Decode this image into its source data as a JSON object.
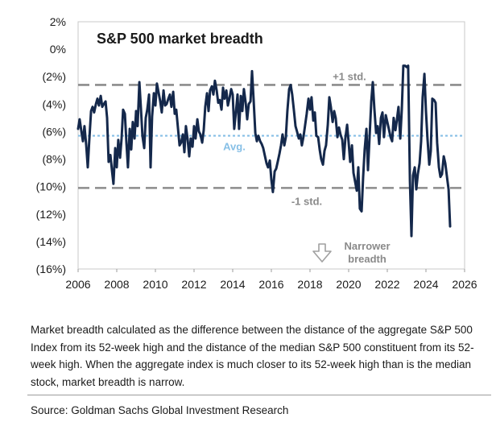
{
  "chart_data": {
    "type": "line",
    "title": "S&P 500 market breadth",
    "xlabel": "",
    "ylabel": "",
    "xlim": [
      2006,
      2026
    ],
    "ylim": [
      -16,
      2
    ],
    "x_ticks": [
      {
        "value": 2006,
        "label": "2006"
      },
      {
        "value": 2008,
        "label": "2008"
      },
      {
        "value": 2010,
        "label": "2010"
      },
      {
        "value": 2012,
        "label": "2012"
      },
      {
        "value": 2014,
        "label": "2014"
      },
      {
        "value": 2016,
        "label": "2016"
      },
      {
        "value": 2018,
        "label": "2018"
      },
      {
        "value": 2020,
        "label": "2020"
      },
      {
        "value": 2022,
        "label": "2022"
      },
      {
        "value": 2024,
        "label": "2024"
      },
      {
        "value": 2026,
        "label": "2026"
      }
    ],
    "y_ticks": [
      {
        "value": 2,
        "label": "2%"
      },
      {
        "value": 0,
        "label": "0%"
      },
      {
        "value": -2,
        "label": "(2%)"
      },
      {
        "value": -4,
        "label": "(4%)"
      },
      {
        "value": -6,
        "label": "(6%)"
      },
      {
        "value": -8,
        "label": "(8%)"
      },
      {
        "value": -10,
        "label": "(10%)"
      },
      {
        "value": -12,
        "label": "(12%)"
      },
      {
        "value": -14,
        "label": "(14%)"
      },
      {
        "value": -16,
        "label": "(16%)"
      }
    ],
    "grid": false,
    "reference_lines": [
      {
        "label": "+1 std.",
        "value": -2.6,
        "color": "#8c8c8c",
        "style": "dashed"
      },
      {
        "label": "Avg.",
        "value": -6.3,
        "color": "#86bfe6",
        "style": "dotted"
      },
      {
        "label": "-1 std.",
        "value": -10.1,
        "color": "#8c8c8c",
        "style": "dashed"
      }
    ],
    "annotation": {
      "text_lines": [
        "Narrower",
        "breadth"
      ],
      "icon": "down-arrow-icon",
      "color": "#a0a0a0"
    },
    "series": [
      {
        "color": "#14284b",
        "points": [
          [
            2006.0,
            -5.8
          ],
          [
            2006.08,
            -5.1
          ],
          [
            2006.17,
            -6.0
          ],
          [
            2006.25,
            -6.7
          ],
          [
            2006.33,
            -5.6
          ],
          [
            2006.42,
            -7.0
          ],
          [
            2006.5,
            -8.6
          ],
          [
            2006.58,
            -6.6
          ],
          [
            2006.67,
            -4.5
          ],
          [
            2006.75,
            -4.2
          ],
          [
            2006.83,
            -4.6
          ],
          [
            2006.92,
            -4.0
          ],
          [
            2007.0,
            -3.6
          ],
          [
            2007.08,
            -4.1
          ],
          [
            2007.17,
            -3.4
          ],
          [
            2007.25,
            -4.2
          ],
          [
            2007.33,
            -4.0
          ],
          [
            2007.42,
            -3.8
          ],
          [
            2007.5,
            -5.0
          ],
          [
            2007.58,
            -8.2
          ],
          [
            2007.67,
            -7.7
          ],
          [
            2007.75,
            -8.8
          ],
          [
            2007.83,
            -9.8
          ],
          [
            2007.92,
            -7.2
          ],
          [
            2008.0,
            -8.6
          ],
          [
            2008.08,
            -6.6
          ],
          [
            2008.17,
            -7.9
          ],
          [
            2008.25,
            -6.5
          ],
          [
            2008.33,
            -4.4
          ],
          [
            2008.42,
            -4.7
          ],
          [
            2008.5,
            -6.8
          ],
          [
            2008.58,
            -8.6
          ],
          [
            2008.67,
            -5.8
          ],
          [
            2008.75,
            -7.3
          ],
          [
            2008.83,
            -5.3
          ],
          [
            2008.92,
            -6.5
          ],
          [
            2009.0,
            -4.5
          ],
          [
            2009.08,
            -5.6
          ],
          [
            2009.17,
            -2.4
          ],
          [
            2009.25,
            -4.3
          ],
          [
            2009.33,
            -6.3
          ],
          [
            2009.42,
            -7.2
          ],
          [
            2009.5,
            -5.0
          ],
          [
            2009.58,
            -4.4
          ],
          [
            2009.67,
            -3.3
          ],
          [
            2009.75,
            -8.6
          ],
          [
            2009.83,
            -4.9
          ],
          [
            2009.92,
            -3.2
          ],
          [
            2010.0,
            -4.1
          ],
          [
            2010.08,
            -2.5
          ],
          [
            2010.17,
            -3.2
          ],
          [
            2010.25,
            -3.8
          ],
          [
            2010.33,
            -4.6
          ],
          [
            2010.42,
            -3.0
          ],
          [
            2010.5,
            -4.1
          ],
          [
            2010.58,
            -4.0
          ],
          [
            2010.67,
            -3.6
          ],
          [
            2010.75,
            -3.3
          ],
          [
            2010.83,
            -4.2
          ],
          [
            2010.92,
            -3.1
          ],
          [
            2011.0,
            -4.7
          ],
          [
            2011.08,
            -4.4
          ],
          [
            2011.17,
            -5.8
          ],
          [
            2011.25,
            -7.0
          ],
          [
            2011.33,
            -6.8
          ],
          [
            2011.42,
            -6.2
          ],
          [
            2011.5,
            -7.5
          ],
          [
            2011.58,
            -5.6
          ],
          [
            2011.67,
            -6.6
          ],
          [
            2011.75,
            -7.8
          ],
          [
            2011.83,
            -6.5
          ],
          [
            2011.92,
            -7.1
          ],
          [
            2012.0,
            -5.6
          ],
          [
            2012.08,
            -6.5
          ],
          [
            2012.17,
            -5.1
          ],
          [
            2012.25,
            -6.0
          ],
          [
            2012.33,
            -6.2
          ],
          [
            2012.42,
            -6.8
          ],
          [
            2012.5,
            -5.9
          ],
          [
            2012.58,
            -4.2
          ],
          [
            2012.67,
            -3.2
          ],
          [
            2012.75,
            -4.5
          ],
          [
            2012.83,
            -3.0
          ],
          [
            2012.92,
            -2.7
          ],
          [
            2013.0,
            -3.3
          ],
          [
            2013.08,
            -2.3
          ],
          [
            2013.17,
            -3.0
          ],
          [
            2013.25,
            -3.9
          ],
          [
            2013.33,
            -3.7
          ],
          [
            2013.42,
            -4.4
          ],
          [
            2013.5,
            -2.8
          ],
          [
            2013.58,
            -3.6
          ],
          [
            2013.67,
            -3.0
          ],
          [
            2013.75,
            -4.1
          ],
          [
            2013.83,
            -3.6
          ],
          [
            2013.92,
            -2.9
          ],
          [
            2014.0,
            -3.3
          ],
          [
            2014.08,
            -5.8
          ],
          [
            2014.17,
            -4.5
          ],
          [
            2014.25,
            -3.3
          ],
          [
            2014.33,
            -5.8
          ],
          [
            2014.42,
            -3.4
          ],
          [
            2014.5,
            -4.5
          ],
          [
            2014.58,
            -2.9
          ],
          [
            2014.67,
            -3.9
          ],
          [
            2014.75,
            -5.1
          ],
          [
            2014.83,
            -4.0
          ],
          [
            2014.92,
            -3.8
          ],
          [
            2015.0,
            -1.6
          ],
          [
            2015.08,
            -3.6
          ],
          [
            2015.17,
            -6.1
          ],
          [
            2015.25,
            -6.7
          ],
          [
            2015.33,
            -6.3
          ],
          [
            2015.42,
            -6.7
          ],
          [
            2015.5,
            -6.9
          ],
          [
            2015.58,
            -7.2
          ],
          [
            2015.67,
            -7.8
          ],
          [
            2015.75,
            -8.3
          ],
          [
            2015.83,
            -8.6
          ],
          [
            2015.92,
            -8.1
          ],
          [
            2016.0,
            -9.5
          ],
          [
            2016.08,
            -10.4
          ],
          [
            2016.17,
            -8.9
          ],
          [
            2016.25,
            -8.7
          ],
          [
            2016.33,
            -8.2
          ],
          [
            2016.42,
            -7.6
          ],
          [
            2016.5,
            -7.0
          ],
          [
            2016.58,
            -6.2
          ],
          [
            2016.67,
            -7.0
          ],
          [
            2016.75,
            -6.4
          ],
          [
            2016.83,
            -4.5
          ],
          [
            2016.92,
            -2.9
          ],
          [
            2017.0,
            -2.6
          ],
          [
            2017.08,
            -3.3
          ],
          [
            2017.17,
            -4.5
          ],
          [
            2017.25,
            -5.6
          ],
          [
            2017.33,
            -6.0
          ],
          [
            2017.42,
            -6.5
          ],
          [
            2017.5,
            -6.2
          ],
          [
            2017.58,
            -7.0
          ],
          [
            2017.67,
            -6.3
          ],
          [
            2017.75,
            -5.5
          ],
          [
            2017.83,
            -4.7
          ],
          [
            2017.92,
            -3.6
          ],
          [
            2018.0,
            -4.4
          ],
          [
            2018.08,
            -3.5
          ],
          [
            2018.17,
            -5.2
          ],
          [
            2018.25,
            -4.6
          ],
          [
            2018.33,
            -6.3
          ],
          [
            2018.42,
            -6.4
          ],
          [
            2018.5,
            -7.3
          ],
          [
            2018.58,
            -8.0
          ],
          [
            2018.67,
            -8.4
          ],
          [
            2018.75,
            -7.4
          ],
          [
            2018.83,
            -7.0
          ],
          [
            2018.92,
            -5.5
          ],
          [
            2019.0,
            -3.5
          ],
          [
            2019.08,
            -4.2
          ],
          [
            2019.17,
            -5.3
          ],
          [
            2019.25,
            -4.5
          ],
          [
            2019.33,
            -5.0
          ],
          [
            2019.42,
            -6.4
          ],
          [
            2019.5,
            -5.7
          ],
          [
            2019.58,
            -6.2
          ],
          [
            2019.67,
            -6.6
          ],
          [
            2019.75,
            -8.0
          ],
          [
            2019.83,
            -6.5
          ],
          [
            2019.92,
            -5.5
          ],
          [
            2020.0,
            -6.8
          ],
          [
            2020.08,
            -8.2
          ],
          [
            2020.17,
            -7.0
          ],
          [
            2020.25,
            -9.0
          ],
          [
            2020.33,
            -9.6
          ],
          [
            2020.42,
            -10.3
          ],
          [
            2020.5,
            -8.6
          ],
          [
            2020.58,
            -11.6
          ],
          [
            2020.67,
            -11.8
          ],
          [
            2020.75,
            -9.3
          ],
          [
            2020.83,
            -7.3
          ],
          [
            2020.92,
            -5.8
          ],
          [
            2021.0,
            -8.8
          ],
          [
            2021.08,
            -6.5
          ],
          [
            2021.17,
            -3.8
          ],
          [
            2021.25,
            -2.4
          ],
          [
            2021.33,
            -4.3
          ],
          [
            2021.42,
            -6.1
          ],
          [
            2021.5,
            -5.6
          ],
          [
            2021.58,
            -6.9
          ],
          [
            2021.67,
            -5.0
          ],
          [
            2021.75,
            -4.6
          ],
          [
            2021.83,
            -6.4
          ],
          [
            2021.92,
            -4.8
          ],
          [
            2022.0,
            -5.3
          ],
          [
            2022.08,
            -5.8
          ],
          [
            2022.17,
            -6.4
          ],
          [
            2022.25,
            -6.7
          ],
          [
            2022.33,
            -5.0
          ],
          [
            2022.42,
            -5.9
          ],
          [
            2022.5,
            -5.1
          ],
          [
            2022.58,
            -4.2
          ],
          [
            2022.67,
            -6.5
          ],
          [
            2022.75,
            -4.4
          ],
          [
            2022.83,
            -1.2
          ],
          [
            2022.92,
            -1.2
          ],
          [
            2023.0,
            -1.3
          ],
          [
            2023.08,
            -1.2
          ],
          [
            2023.17,
            -9.6
          ],
          [
            2023.25,
            -13.6
          ],
          [
            2023.33,
            -9.2
          ],
          [
            2023.42,
            -8.6
          ],
          [
            2023.5,
            -10.2
          ],
          [
            2023.58,
            -9.1
          ],
          [
            2023.67,
            -8.3
          ],
          [
            2023.75,
            -6.7
          ],
          [
            2023.83,
            -3.5
          ],
          [
            2023.92,
            -1.8
          ],
          [
            2024.0,
            -4.5
          ],
          [
            2024.08,
            -6.5
          ],
          [
            2024.17,
            -8.4
          ],
          [
            2024.25,
            -7.4
          ],
          [
            2024.33,
            -3.6
          ],
          [
            2024.42,
            -3.7
          ],
          [
            2024.5,
            -3.9
          ],
          [
            2024.58,
            -6.8
          ],
          [
            2024.67,
            -8.6
          ],
          [
            2024.75,
            -9.3
          ],
          [
            2024.83,
            -9.1
          ],
          [
            2024.92,
            -7.8
          ],
          [
            2025.0,
            -8.3
          ],
          [
            2025.08,
            -9.2
          ],
          [
            2025.17,
            -10.2
          ],
          [
            2025.25,
            -12.9
          ]
        ]
      }
    ]
  },
  "caption": "Market breadth calculated as the difference between the distance of the aggregate S&P 500 Index from its 52-week high and the distance of the median S&P 500 constituent from its 52-week high. When the aggregate index is much closer to its 52-week high than is the median stock, market breadth is narrow.",
  "source": "Source: Goldman Sachs Global Investment Research"
}
